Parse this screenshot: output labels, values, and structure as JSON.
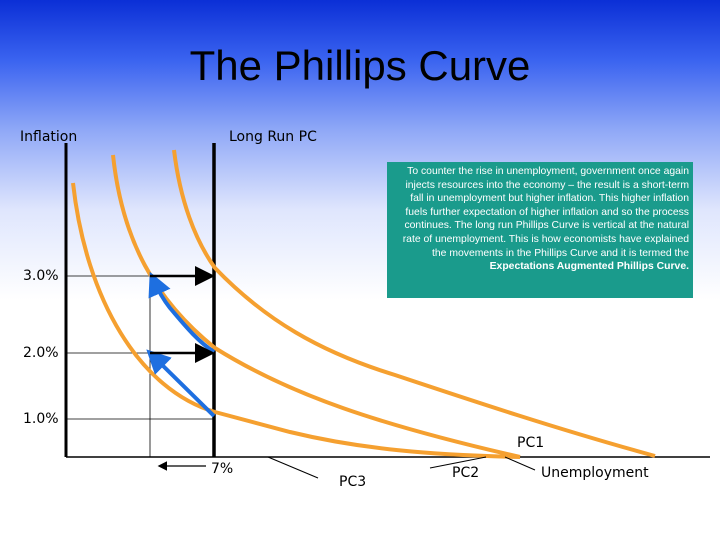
{
  "title": "The Phillips Curve",
  "labels": {
    "y_axis": "Inflation",
    "long_run": "Long Run PC",
    "x_axis": "Unemployment",
    "nat_rate": "7%",
    "pc1": "PC1",
    "pc2": "PC2",
    "pc3": "PC3"
  },
  "y_ticks": [
    "3.0%",
    "2.0%",
    "1.0%"
  ],
  "note": {
    "text": "To counter the rise in unemployment, government once again injects resources into the economy – the result is a short-term fall in unemployment but higher inflation. This higher inflation fuels further expectation of higher inflation and so the process continues. The long run Phillips Curve is vertical at the natural rate of unemployment. This is how economists have explained the movements in the Phillips Curve and it is termed the",
    "bold": "Expectations Augmented Phillips Curve."
  },
  "colors": {
    "curve": "#f5a030",
    "arrow_blue": "#1e6fe0",
    "arrow_black": "#000000",
    "note_bg": "#1a9b8c",
    "note_text": "#ffffff"
  }
}
